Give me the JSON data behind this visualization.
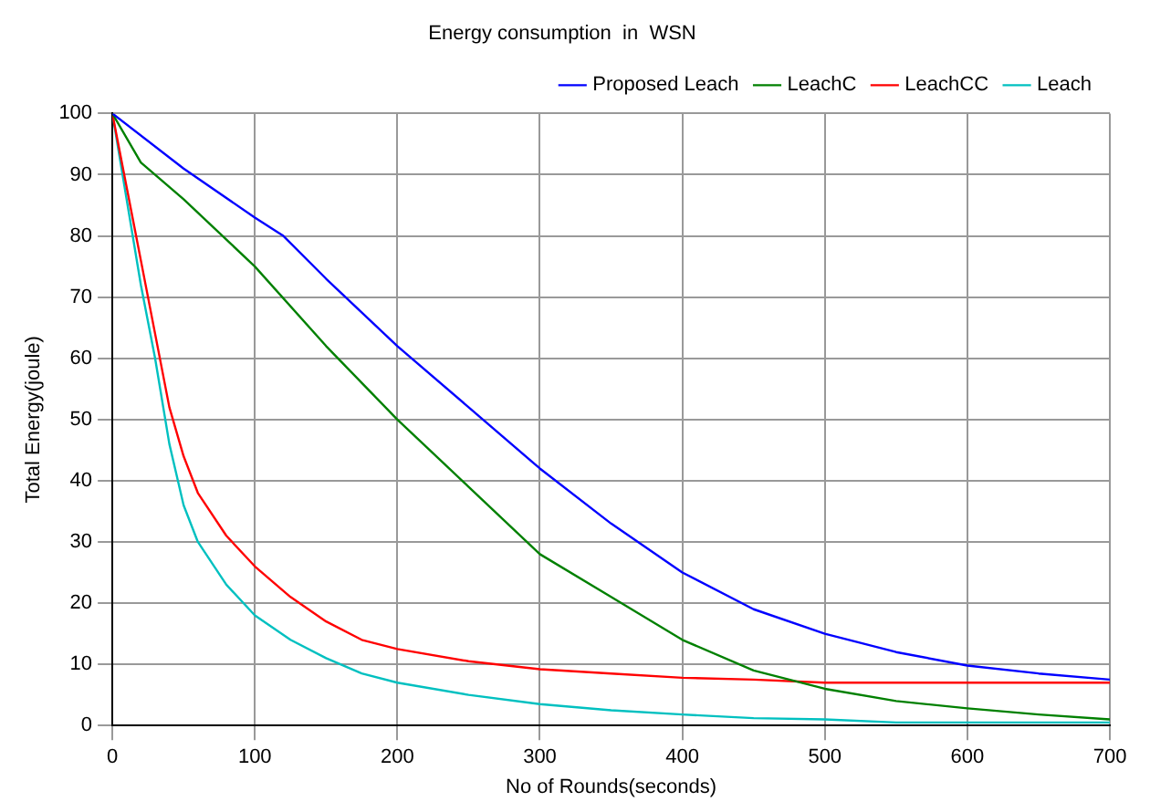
{
  "chart_data": {
    "type": "line",
    "title": "Energy consumption  in  WSN",
    "xlabel": "No of Rounds(seconds)",
    "ylabel": "Total Energy(joule)",
    "xlim": [
      0,
      700
    ],
    "xticks": [
      0,
      100,
      200,
      300,
      400,
      500,
      600,
      700
    ],
    "ylim": [
      0,
      100
    ],
    "yticks": [
      0,
      10,
      20,
      30,
      40,
      50,
      60,
      70,
      80,
      90,
      100
    ],
    "grid": true,
    "legend": "top right",
    "marker": "none",
    "line_style": "solid",
    "series": [
      {
        "name": "Proposed Leach",
        "color": "#0000ff",
        "x": [
          0,
          50,
          100,
          120,
          150,
          200,
          250,
          300,
          350,
          400,
          450,
          500,
          550,
          600,
          650,
          700
        ],
        "values": [
          100,
          91,
          83,
          80,
          73,
          62,
          52,
          42,
          33,
          25,
          19,
          15,
          12,
          9.8,
          8.5,
          7.5
        ]
      },
      {
        "name": "LeachC",
        "color": "#008000",
        "x": [
          0,
          20,
          50,
          100,
          150,
          200,
          250,
          300,
          350,
          400,
          450,
          500,
          550,
          600,
          650,
          700
        ],
        "values": [
          100,
          92,
          86,
          75,
          62,
          50,
          39,
          28,
          21,
          14,
          9,
          6,
          4,
          2.8,
          1.8,
          1
        ]
      },
      {
        "name": "LeachCC",
        "color": "#ff0000",
        "x": [
          0,
          10,
          20,
          30,
          40,
          50,
          60,
          80,
          100,
          125,
          150,
          175,
          200,
          250,
          300,
          350,
          400,
          450,
          500,
          600,
          700
        ],
        "values": [
          100,
          88,
          76,
          64,
          52,
          44,
          38,
          31,
          26,
          21,
          17,
          14,
          12.5,
          10.5,
          9.2,
          8.5,
          7.8,
          7.5,
          7,
          7,
          7
        ]
      },
      {
        "name": "Leach",
        "color": "#00c0c0",
        "x": [
          0,
          10,
          20,
          30,
          40,
          50,
          60,
          80,
          100,
          125,
          150,
          175,
          200,
          250,
          300,
          350,
          400,
          450,
          500,
          550,
          600,
          700
        ],
        "values": [
          100,
          86,
          72,
          60,
          46,
          36,
          30,
          23,
          18,
          14,
          11,
          8.5,
          7,
          5,
          3.5,
          2.5,
          1.8,
          1.2,
          1,
          0.5,
          0.5,
          0.5
        ]
      }
    ]
  }
}
